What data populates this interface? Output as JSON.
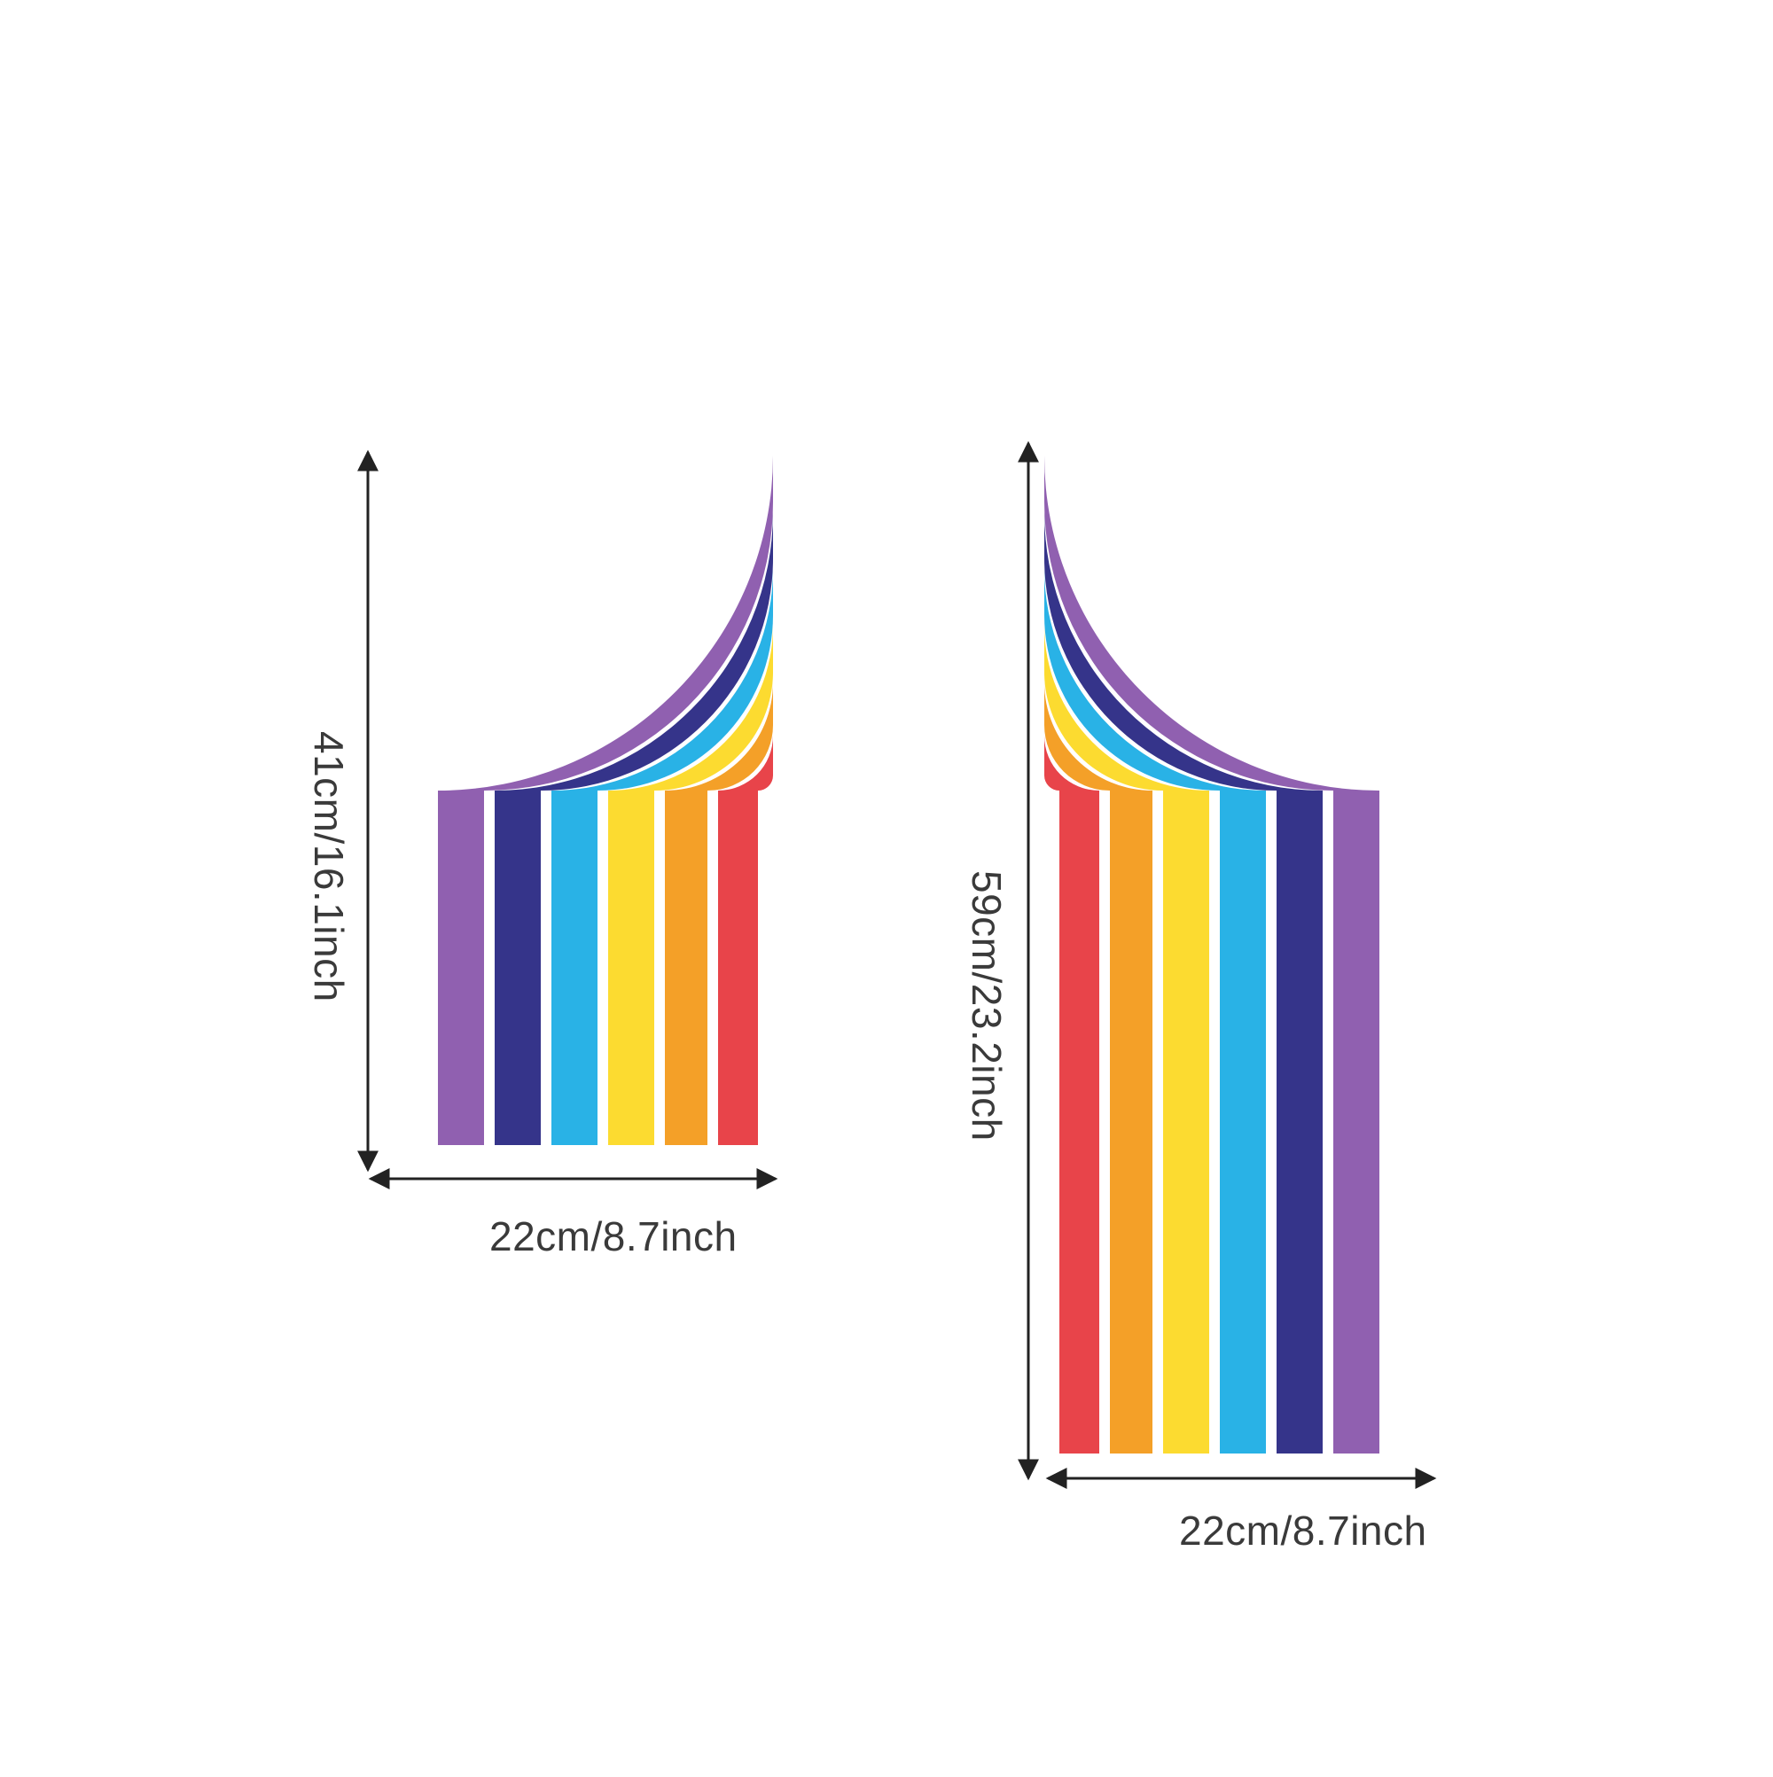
{
  "left_sticker": {
    "height_label": "41cm/16.1inch",
    "width_label": "22cm/8.7inch"
  },
  "right_sticker": {
    "height_label": "59cm/23.2inch",
    "width_label": "22cm/8.7inch"
  },
  "band_colors": {
    "violet": "#9060b0",
    "indigo": "#35348a",
    "sky_blue": "#29b2e6",
    "yellow": "#fcdb30",
    "orange": "#f4a028",
    "red": "#e8444a"
  },
  "arrow_color": "#222222"
}
